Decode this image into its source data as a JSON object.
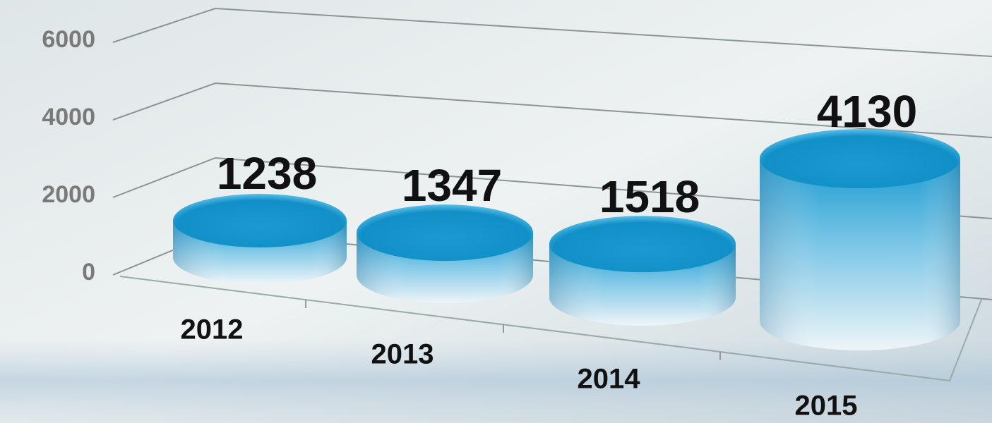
{
  "chart_data": {
    "type": "bar",
    "categories": [
      "2012",
      "2013",
      "2014",
      "2015"
    ],
    "values": [
      1238,
      1347,
      1518,
      4130
    ],
    "color": "#1a9ad0",
    "ylim": [
      0,
      6000
    ],
    "yticks": [
      0,
      2000,
      4000,
      6000
    ],
    "grid": true
  }
}
